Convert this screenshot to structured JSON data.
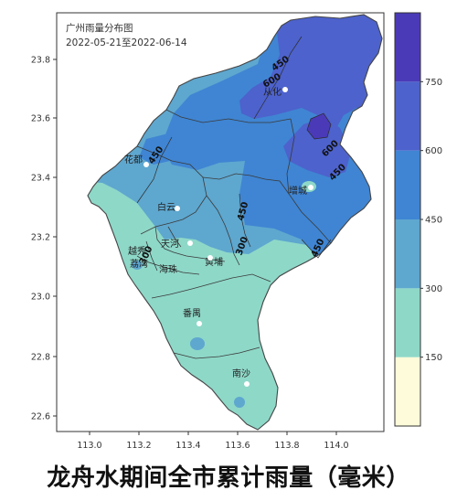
{
  "map": {
    "title": "广州雨量分布图",
    "date_range": "2022-05-21至2022-06-14",
    "x_ticks": [
      "113.0",
      "113.2",
      "113.4",
      "113.6",
      "113.8",
      "114.0"
    ],
    "y_ticks": [
      "23.8",
      "23.6",
      "23.4",
      "23.2",
      "23.0",
      "22.8",
      "22.6"
    ],
    "districts": [
      {
        "id": "conghua",
        "label": "从化"
      },
      {
        "id": "huadu",
        "label": "花都"
      },
      {
        "id": "zengcheng",
        "label": "增城"
      },
      {
        "id": "baiyun",
        "label": "白云"
      },
      {
        "id": "tianhe",
        "label": "天河"
      },
      {
        "id": "yuexiu",
        "label": "越秀"
      },
      {
        "id": "liwan",
        "label": "荔湾"
      },
      {
        "id": "haizhu",
        "label": "海珠"
      },
      {
        "id": "huangpu",
        "label": "黄埔"
      },
      {
        "id": "panyu",
        "label": "番禺"
      },
      {
        "id": "nansha",
        "label": "南沙"
      }
    ],
    "contour_labels": [
      {
        "id": "c450-north",
        "text": "450"
      },
      {
        "id": "c600-north",
        "text": "600"
      },
      {
        "id": "c450-huadu",
        "text": "450"
      },
      {
        "id": "c600-east",
        "text": "600"
      },
      {
        "id": "c450-east",
        "text": "450"
      },
      {
        "id": "c450-center",
        "text": "450"
      },
      {
        "id": "c300-center",
        "text": "300"
      },
      {
        "id": "c450-southeast",
        "text": "450"
      },
      {
        "id": "c300-liwan",
        "text": "300"
      }
    ]
  },
  "colorbar": {
    "ticks": [
      "750",
      "600",
      "450",
      "300",
      "150"
    ],
    "colors": [
      "#fdfbd9",
      "#8ed8c8",
      "#5ea7cf",
      "#3f85d3",
      "#4d62cc",
      "#4a3ab8"
    ]
  },
  "caption": "龙舟水期间全市累计雨量（毫米）"
}
